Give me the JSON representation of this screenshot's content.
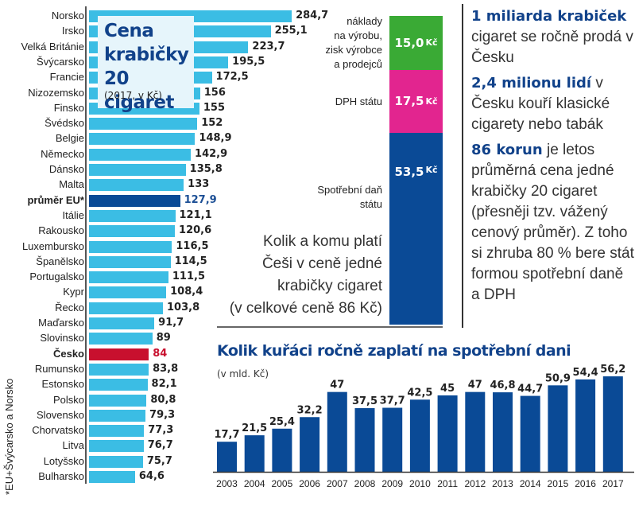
{
  "chart_data": [
    {
      "type": "bar",
      "orientation": "horizontal",
      "title": "Cena krabičky 20 cigaret",
      "subtitle": "(2017, v Kč)",
      "categories": [
        "Norsko",
        "Irsko",
        "Velká Británie",
        "Švýcarsko",
        "Francie",
        "Nizozemsko",
        "Finsko",
        "Švédsko",
        "Belgie",
        "Německo",
        "Dánsko",
        "Malta",
        "průměr EU*",
        "Itálie",
        "Rakousko",
        "Luxembursko",
        "Španělsko",
        "Portugalsko",
        "Kypr",
        "Řecko",
        "Maďarsko",
        "Slovinsko",
        "Česko",
        "Rumunsko",
        "Estonsko",
        "Polsko",
        "Slovensko",
        "Chorvatsko",
        "Litva",
        "Lotyšsko",
        "Bulharsko"
      ],
      "values": [
        284.7,
        255.1,
        223.7,
        195.5,
        172.5,
        156,
        155,
        152,
        148.9,
        142.9,
        135.8,
        133,
        127.9,
        121.1,
        120.6,
        116.5,
        114.5,
        111.5,
        108.4,
        103.8,
        91.7,
        89,
        84,
        83.8,
        82.1,
        80.8,
        79.3,
        77.3,
        76.7,
        75.7,
        64.6
      ],
      "labels": [
        "284,7",
        "255,1",
        "223,7",
        "195,5",
        "172,5",
        "156",
        "155",
        "152",
        "148,9",
        "142,9",
        "135,8",
        "133",
        "127,9",
        "121,1",
        "120,6",
        "116,5",
        "114,5",
        "111,5",
        "108,4",
        "103,8",
        "91,7",
        "89",
        "84",
        "83,8",
        "82,1",
        "80,8",
        "79,3",
        "77,3",
        "76,7",
        "75,7",
        "64,6"
      ],
      "highlight": {
        "průměr EU*": "eu",
        "Česko": "cz"
      },
      "footnote": "*EU+Švýcarsko a Norsko",
      "grid": false,
      "colors": {
        "default": "#3bbde4",
        "eu": "#0a4a96",
        "cz": "#c8102e"
      }
    },
    {
      "type": "bar",
      "orientation": "stacked-vertical",
      "title": "Kolik a komu platí Češi v ceně jedné krabičky cigaret",
      "subtitle": "(v celkové ceně 86 Kč)",
      "total": 86,
      "segments": [
        {
          "name": "náklady na výrobu, zisk výrobce a prodejců",
          "value": 15.0,
          "label": "15,0",
          "unit": "Kč",
          "color": "#3aaa35"
        },
        {
          "name": "DPH státu",
          "value": 17.5,
          "label": "17,5",
          "unit": "Kč",
          "color": "#e2258f"
        },
        {
          "name": "Spotřební daň státu",
          "value": 53.5,
          "label": "53,5",
          "unit": "Kč",
          "color": "#0a4a96"
        }
      ]
    },
    {
      "type": "bar",
      "title": "Kolik kuřáci ročně zaplatí na spotřební dani",
      "subtitle": "(v mld. Kč)",
      "categories": [
        "2003",
        "2004",
        "2005",
        "2006",
        "2007",
        "2008",
        "2009",
        "2010",
        "2011",
        "2012",
        "2013",
        "2014",
        "2015",
        "2016",
        "2017"
      ],
      "values": [
        17.7,
        21.5,
        25.4,
        32.2,
        47,
        37.5,
        37.7,
        42.5,
        45,
        47,
        46.8,
        44.7,
        50.9,
        54.4,
        56.2
      ],
      "labels": [
        "17,7",
        "21,5",
        "25,4",
        "32,2",
        "47",
        "37,5",
        "37,7",
        "42,5",
        "45",
        "47",
        "46,8",
        "44,7",
        "50,9",
        "54,4",
        "56,2"
      ],
      "ylim": [
        0,
        60
      ],
      "grid": false,
      "color": "#0a4a96"
    }
  ],
  "left": {
    "title_lines": [
      "Cena",
      "krabičky",
      "20 cigaret"
    ],
    "subtitle": "(2017, v Kč)",
    "footnote": "*EU+Švýcarsko a Norsko"
  },
  "stack": {
    "labels": {
      "production": [
        "náklady",
        "na výrobu,",
        "zisk výrobce",
        "a prodejců"
      ],
      "vat": [
        "DPH státu"
      ],
      "excise": [
        "Spotřební daň",
        "státu"
      ]
    },
    "caption_lines": [
      "Kolik a komu platí",
      "Češi v ceně jedné",
      "krabičky cigaret",
      "(v celkové ceně 86 Kč)"
    ]
  },
  "facts": [
    {
      "highlight": "1 miliarda krabiček",
      "text": " cigaret se ročně prodá v Česku"
    },
    {
      "highlight": "2,4 milionu lidí",
      "text": " v Česku kouří klasické cigarety nebo tabák"
    },
    {
      "highlight": "86 korun",
      "text": " je letos průměrná cena jedné krabičky 20 cigaret (přesněji tzv. vážený cenový průměr). Z toho si zhruba 80 % bere stát formou spotřební daně a DPH"
    }
  ],
  "bottom": {
    "title": "Kolik kuřáci ročně zaplatí na spotřební dani",
    "subtitle": "(v mld. Kč)"
  }
}
